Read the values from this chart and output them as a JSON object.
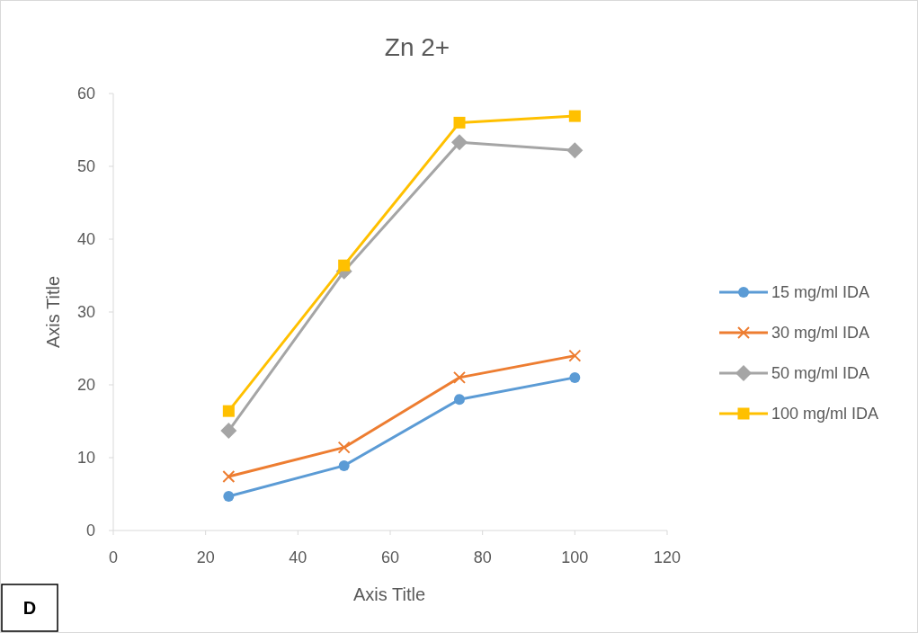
{
  "chart_data": {
    "type": "line",
    "title": "Zn 2+",
    "xlabel": "Axis Title",
    "ylabel": "Axis Title",
    "xlim": [
      0,
      120
    ],
    "xticks": [
      0,
      20,
      40,
      60,
      80,
      100,
      120
    ],
    "ylim": [
      0,
      60
    ],
    "yticks": [
      0,
      10,
      20,
      30,
      40,
      50,
      60
    ],
    "x": [
      25,
      50,
      75,
      100
    ],
    "grid": false,
    "legend": "right",
    "line_style": "solid",
    "series": [
      {
        "name": "15 mg/ml IDA",
        "color": "#5b9bd5",
        "marker": "circle",
        "values": [
          4.7,
          8.9,
          18.0,
          21.0
        ]
      },
      {
        "name": "30 mg/ml IDA",
        "color": "#ed7d31",
        "marker": "cross",
        "values": [
          7.4,
          11.4,
          21.0,
          24.0
        ]
      },
      {
        "name": "50 mg/ml IDA",
        "color": "#a5a5a5",
        "marker": "diamond",
        "values": [
          13.7,
          35.6,
          53.3,
          52.2
        ]
      },
      {
        "name": "100 mg/ml IDA",
        "color": "#ffc000",
        "marker": "square",
        "values": [
          16.4,
          36.4,
          56.0,
          56.9
        ]
      }
    ],
    "annotations": [
      "D"
    ]
  }
}
